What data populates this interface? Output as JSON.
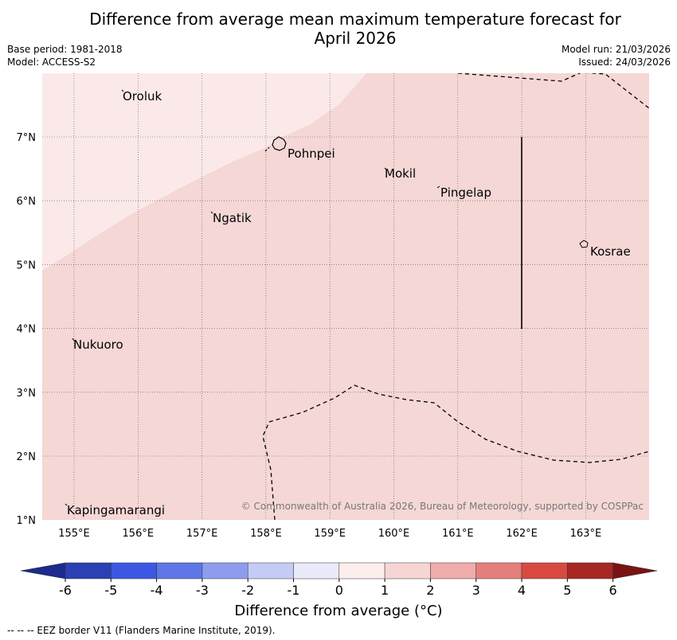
{
  "header": {
    "title_line1": "Difference from average mean maximum temperature forecast for",
    "title_line2": "April 2026",
    "base_period": "Base period: 1981-2018",
    "model": "Model: ACCESS-S2",
    "model_run": "Model run: 21/03/2026",
    "issued": "Issued: 24/03/2026"
  },
  "map": {
    "lon_labels": [
      "155°E",
      "156°E",
      "157°E",
      "158°E",
      "159°E",
      "160°E",
      "161°E",
      "162°E",
      "163°E"
    ],
    "lat_labels": [
      "7°N",
      "6°N",
      "5°N",
      "4°N",
      "3°N",
      "2°N",
      "1°N"
    ],
    "places": [
      "Oroluk",
      "Pohnpei",
      "Mokil",
      "Pingelap",
      "Ngatik",
      "Kosrae",
      "Nukuoro",
      "Kapingamarangi"
    ],
    "fill_colors": {
      "light": "#fbe9e9",
      "main": "#f5d7d6"
    },
    "attribution": "© Commonwealth of Australia 2026, Bureau of Meteorology, supported by COSPPac"
  },
  "colorbar": {
    "tick_labels": [
      "-6",
      "-5",
      "-4",
      "-3",
      "-2",
      "-1",
      "0",
      "1",
      "2",
      "3",
      "4",
      "5",
      "6"
    ],
    "colors": [
      "#1b2a8c",
      "#2a40b3",
      "#3c58e2",
      "#5f76e6",
      "#8e9cee",
      "#c6cbf5",
      "#e9ebfb",
      "#fdeeee",
      "#f6d6d5",
      "#eeacab",
      "#e47f7b",
      "#d84a40",
      "#a82724",
      "#7a1414"
    ],
    "title": "Difference from average (°C)"
  },
  "footer": {
    "note": "--  --  -- EEZ border V11 (Flanders Marine Institute, 2019)."
  }
}
